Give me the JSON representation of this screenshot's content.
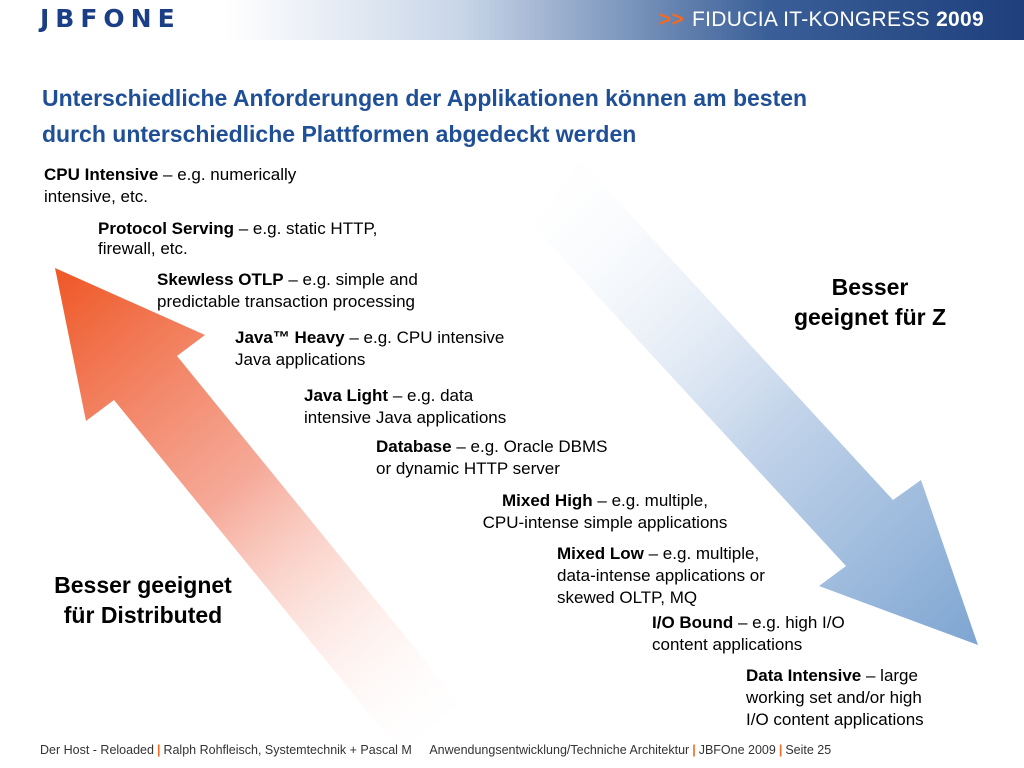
{
  "header": {
    "logo": "JBFONE",
    "congress_prefix": ">>",
    "congress_name": "FIDUCIA IT-KONGRESS",
    "congress_year": "2009"
  },
  "title": {
    "line1": "Unterschiedliche Anforderungen der Applikationen können am besten",
    "line2": "durch unterschiedliche Plattformen abgedeckt werden"
  },
  "workloads": [
    {
      "name": "CPU Intensive",
      "line1": " – e.g. numerically",
      "line2": "intensive, etc."
    },
    {
      "name": "Protocol Serving",
      "line1": " – e.g. static HTTP,",
      "line2": "firewall, etc."
    },
    {
      "name": "Skewless OTLP",
      "line1": " – e.g. simple and",
      "line2": "predictable transaction processing"
    },
    {
      "name": "Java™ Heavy",
      "line1": " – e.g. CPU intensive",
      "line2": "Java applications"
    },
    {
      "name": "Java Light",
      "line1": " – e.g. data",
      "line2": "intensive Java applications"
    },
    {
      "name": "Database",
      "line1": " –  e.g. Oracle DBMS",
      "line2": "or  dynamic HTTP server"
    },
    {
      "name": "Mixed High",
      "line1": " – e.g. multiple,",
      "line2": "CPU-intense simple applications"
    },
    {
      "name": "Mixed Low",
      "line1": " – e.g. multiple,",
      "line2": "data-intense applications or",
      "line3": "skewed OLTP, MQ"
    },
    {
      "name": "I/O Bound",
      "line1": " – e.g. high I/O",
      "line2": "content applications"
    },
    {
      "name": "Data Intensive",
      "line1": " – large",
      "line2": "working set  and/or high",
      "line3": "I/O content applications"
    }
  ],
  "labels": {
    "z_line1": "Besser",
    "z_line2": "geeignet für Z",
    "dist_line1": "Besser geeignet",
    "dist_line2": "für Distributed"
  },
  "footer": {
    "part1": "Der Host - Reloaded",
    "part2": "Ralph Rohfleisch, Systemtechnik + Pascal M",
    "part3": "Anwendungsentwicklung/Techniche Architektur",
    "part4": "JBFOne 2009",
    "part5": "Seite 25"
  },
  "colors": {
    "title": "#1f4f96",
    "red_arrow": "#ef5a2a",
    "blue_arrow": "#7fa6d2",
    "accent": "#f26a24"
  }
}
